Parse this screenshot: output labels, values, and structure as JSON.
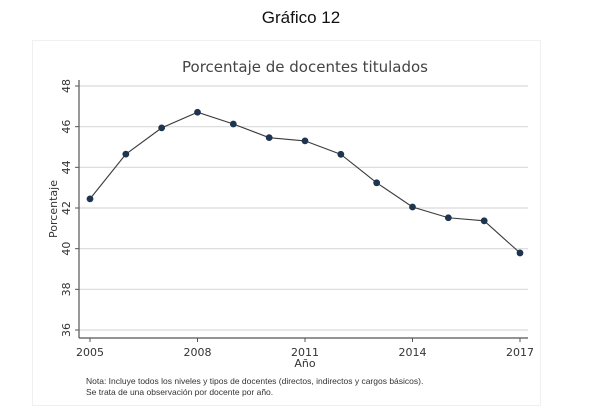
{
  "figure_label": "Gráfico 12",
  "note": {
    "line1": "Nota: Incluye todos los niveles y tipos de docentes (directos, indirectos y cargos básicos).",
    "line2": "Se trata de una observación por docente por año."
  },
  "colors": {
    "line": "#3a3a3a",
    "marker": "#1e3550",
    "grid": "#d9d9d9",
    "axis": "#555555"
  },
  "chart_data": {
    "type": "line",
    "title": "Porcentaje de docentes titulados",
    "xlabel": "Año",
    "ylabel": "Porcentaje",
    "xlim": [
      2005,
      2017
    ],
    "ylim": [
      36,
      48
    ],
    "xticks": [
      2005,
      2008,
      2011,
      2014,
      2017
    ],
    "yticks": [
      36,
      38,
      40,
      42,
      44,
      46,
      48
    ],
    "grid": true,
    "series": [
      {
        "name": "Porcentaje de docentes titulados",
        "x": [
          2005,
          2006,
          2007,
          2008,
          2009,
          2010,
          2011,
          2012,
          2013,
          2014,
          2015,
          2016,
          2017
        ],
        "values": [
          42.45,
          44.65,
          45.94,
          46.71,
          46.13,
          45.46,
          45.3,
          44.64,
          43.24,
          42.05,
          41.52,
          41.37,
          39.79
        ]
      }
    ]
  }
}
